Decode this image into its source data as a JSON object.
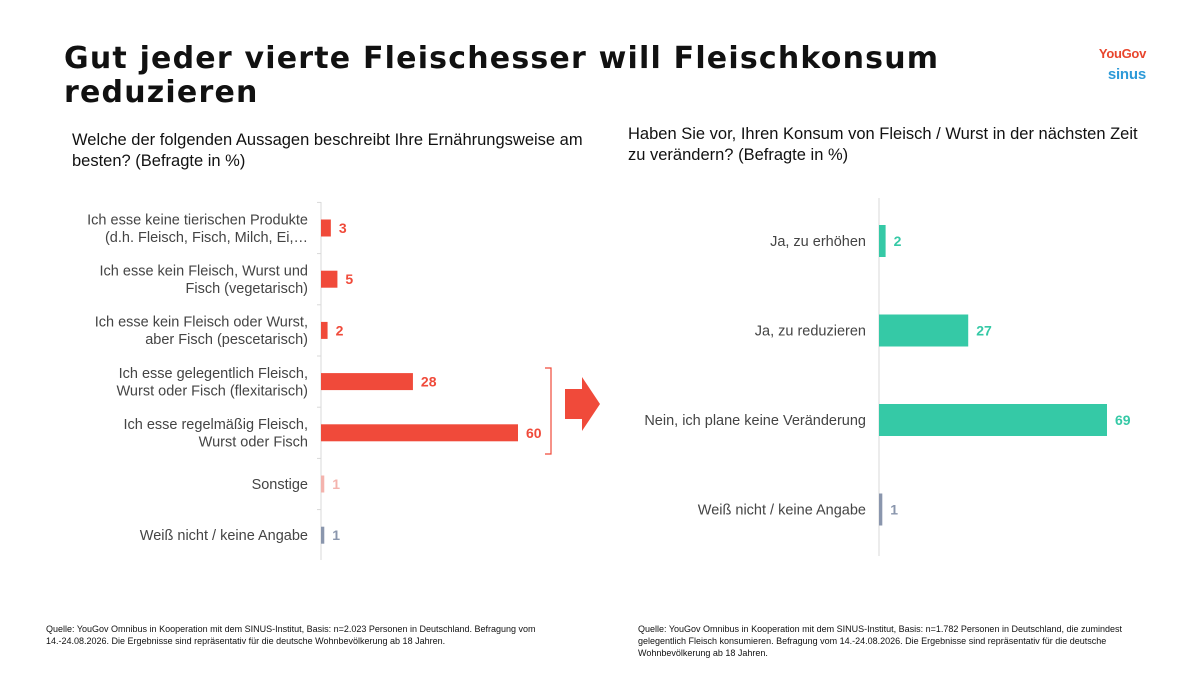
{
  "page": {
    "title": "Gut jeder vierte Fleischesser will Fleischkonsum reduzieren",
    "logo_primary": "YouGov",
    "logo_secondary": "sinus",
    "source_left": "Quelle: YouGov Omnibus in Kooperation mit dem SINUS-Institut, Basis: n=2.023 Personen in Deutschland. Befragung vom 14.-24.08.2026. Die Ergebnisse sind repräsentativ für die deutsche Wohnbevölkerung ab 18 Jahren.",
    "source_right": "Quelle: YouGov Omnibus in Kooperation mit dem SINUS-Institut, Basis: n=1.782 Personen in Deutschland, die zumindest gelegentlich Fleisch konsumieren. Befragung vom 14.-24.08.2026. Die Ergebnisse sind repräsentativ für die deutsche Wohnbevölkerung ab 18 Jahren."
  },
  "chart_data": [
    {
      "type": "bar",
      "orientation": "horizontal",
      "title": "Welche der folgenden Aussagen beschreibt Ihre Ernährungsweise am besten? (Befragte in %)",
      "categories": [
        [
          "Ich esse keine tierischen Produkte",
          "(d.h. Fleisch, Fisch, Milch, Ei,…"
        ],
        [
          "Ich esse kein Fleisch, Wurst und",
          "Fisch (vegetarisch)"
        ],
        [
          "Ich esse kein Fleisch oder Wurst,",
          "aber Fisch (pescetarisch)"
        ],
        [
          "Ich esse gelegentlich Fleisch,",
          "Wurst oder Fisch (flexitarisch)"
        ],
        [
          "Ich esse regelmäßig Fleisch,",
          "Wurst oder Fisch"
        ],
        [
          "Sonstige"
        ],
        [
          "Weiß nicht / keine Angabe"
        ]
      ],
      "values": [
        3,
        5,
        2,
        28,
        60,
        1,
        1
      ],
      "colors": [
        "#f04a3a",
        "#f04a3a",
        "#f04a3a",
        "#f04a3a",
        "#f04a3a",
        "#f4b3ad",
        "#8a96ad"
      ],
      "xlim": [
        0,
        60
      ]
    },
    {
      "type": "bar",
      "orientation": "horizontal",
      "title": "Haben Sie vor, Ihren Konsum von Fleisch / Wurst in der nächsten Zeit zu verändern? (Befragte in %)",
      "categories": [
        [
          "Ja, zu erhöhen"
        ],
        [
          "Ja, zu reduzieren"
        ],
        [
          "Nein, ich plane keine Veränderung"
        ],
        [
          "Weiß nicht / keine Angabe"
        ]
      ],
      "values": [
        2,
        27,
        69,
        1
      ],
      "colors": [
        "#35c9a6",
        "#35c9a6",
        "#35c9a6",
        "#8a96ad"
      ],
      "xlim": [
        0,
        69
      ]
    }
  ]
}
